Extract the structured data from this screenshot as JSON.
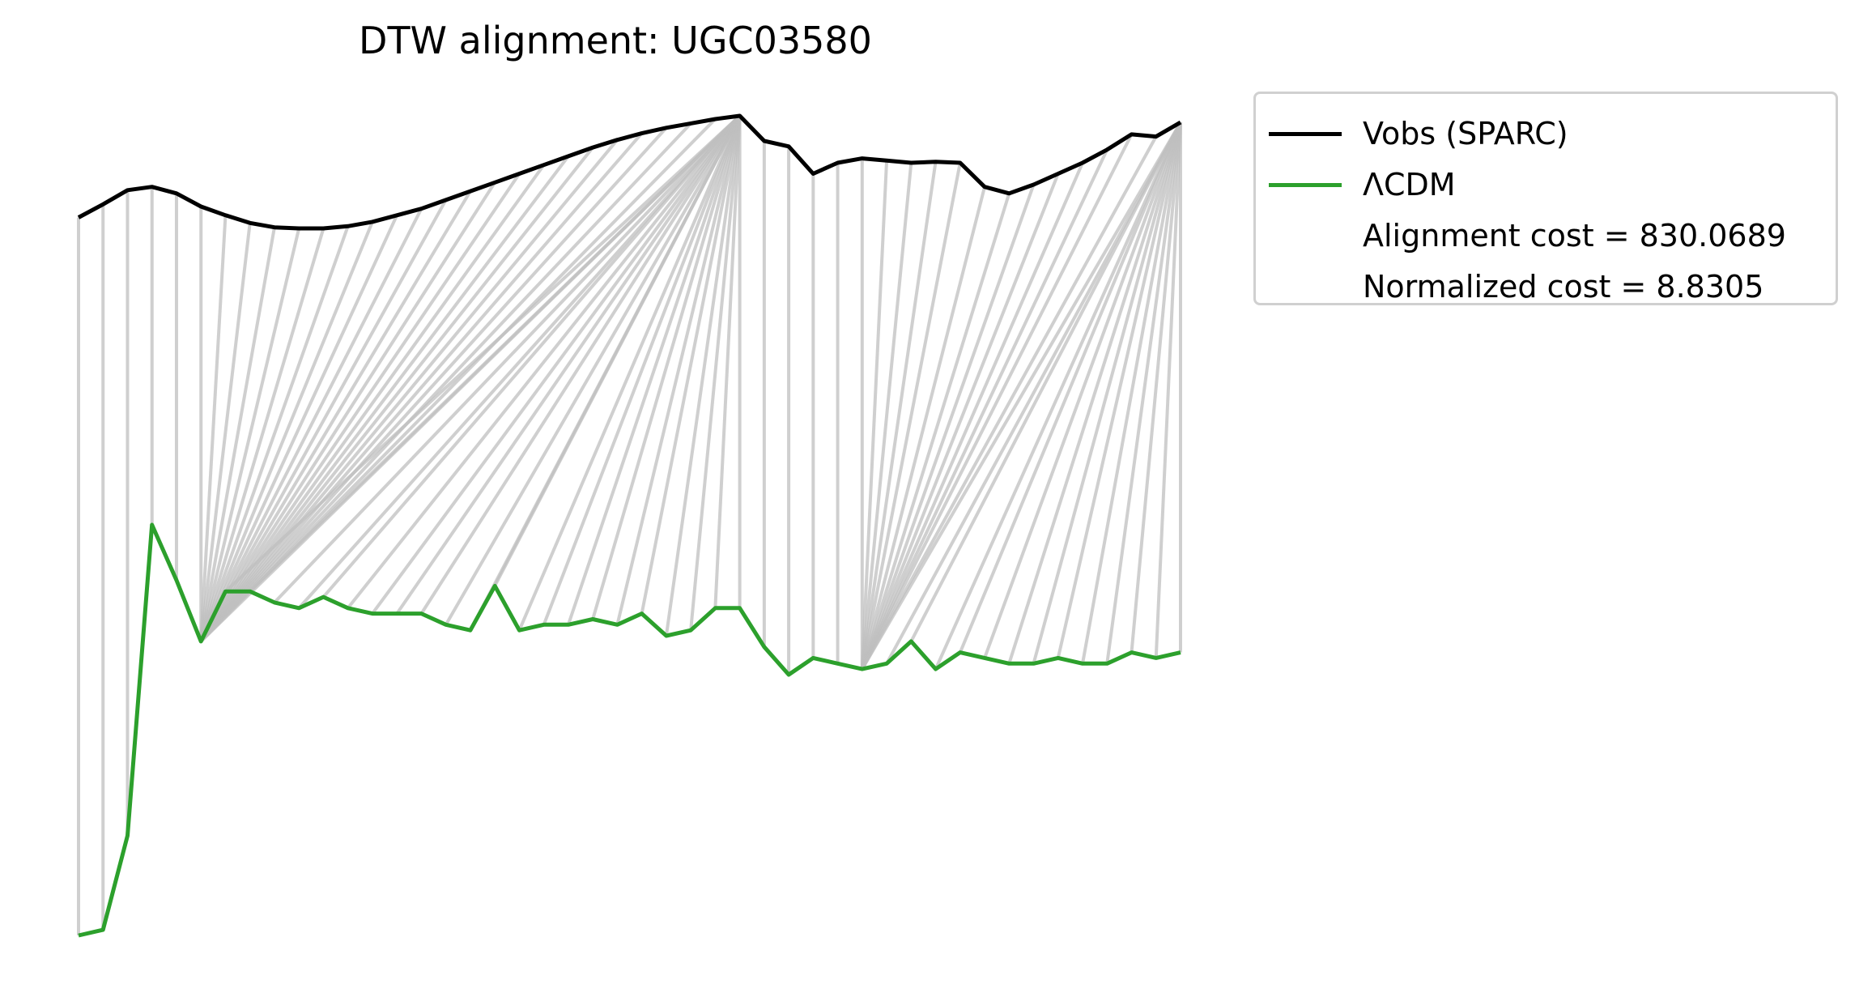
{
  "chart_data": {
    "type": "line",
    "title": "DTW alignment: UGC03580",
    "xlabel": "",
    "ylabel": "",
    "axes_visible": false,
    "grid": false,
    "legend_position": "outside-top-right",
    "series": [
      {
        "name": "Vobs (SPARC)",
        "color": "#000000",
        "values": [
          0.3,
          0.42,
          0.55,
          0.58,
          0.52,
          0.4,
          0.32,
          0.25,
          0.21,
          0.2,
          0.2,
          0.22,
          0.26,
          0.32,
          0.38,
          0.46,
          0.54,
          0.62,
          0.7,
          0.78,
          0.86,
          0.94,
          1.01,
          1.07,
          1.12,
          1.16,
          1.2,
          1.23,
          1.0,
          0.95,
          0.7,
          0.8,
          0.84,
          0.82,
          0.8,
          0.81,
          0.8,
          0.58,
          0.52,
          0.6,
          0.7,
          0.8,
          0.92,
          1.06,
          1.04,
          1.17
        ]
      },
      {
        "name": "ΛCDM",
        "color": "#2ca02c",
        "values": [
          0.52,
          0.53,
          0.7,
          1.26,
          1.16,
          1.05,
          1.14,
          1.14,
          1.12,
          1.11,
          1.13,
          1.11,
          1.1,
          1.1,
          1.1,
          1.08,
          1.07,
          1.15,
          1.07,
          1.08,
          1.08,
          1.09,
          1.08,
          1.1,
          1.06,
          1.07,
          1.11,
          1.11,
          1.04,
          0.99,
          1.02,
          1.01,
          1.0,
          1.01,
          1.05,
          1.0,
          1.03,
          1.02,
          1.01,
          1.01,
          1.02,
          1.01,
          1.01,
          1.03,
          1.02,
          1.03
        ]
      }
    ],
    "legend": {
      "entries": [
        "Vobs (SPARC)",
        "ΛCDM"
      ],
      "annotations": [
        "Alignment cost = 830.0689",
        "Normalized cost = 8.8305"
      ]
    },
    "alignment_path": [
      [
        0,
        0
      ],
      [
        1,
        1
      ],
      [
        2,
        2
      ],
      [
        3,
        3
      ],
      [
        4,
        4
      ],
      [
        5,
        5
      ],
      [
        6,
        5
      ],
      [
        7,
        5
      ],
      [
        8,
        5
      ],
      [
        9,
        5
      ],
      [
        10,
        5
      ],
      [
        11,
        5
      ],
      [
        12,
        5
      ],
      [
        13,
        5
      ],
      [
        14,
        5
      ],
      [
        15,
        5
      ],
      [
        16,
        5
      ],
      [
        17,
        5
      ],
      [
        18,
        5
      ],
      [
        19,
        5
      ],
      [
        20,
        5
      ],
      [
        21,
        5
      ],
      [
        22,
        5
      ],
      [
        23,
        5
      ],
      [
        24,
        5
      ],
      [
        25,
        5
      ],
      [
        26,
        5
      ],
      [
        27,
        5
      ],
      [
        27,
        6
      ],
      [
        27,
        7
      ],
      [
        27,
        8
      ],
      [
        27,
        9
      ],
      [
        27,
        10
      ],
      [
        27,
        11
      ],
      [
        27,
        12
      ],
      [
        27,
        13
      ],
      [
        27,
        14
      ],
      [
        27,
        15
      ],
      [
        27,
        16
      ],
      [
        27,
        17
      ],
      [
        27,
        18
      ],
      [
        27,
        19
      ],
      [
        27,
        20
      ],
      [
        27,
        21
      ],
      [
        27,
        22
      ],
      [
        27,
        23
      ],
      [
        27,
        24
      ],
      [
        27,
        25
      ],
      [
        27,
        26
      ],
      [
        27,
        27
      ],
      [
        28,
        28
      ],
      [
        29,
        29
      ],
      [
        30,
        30
      ],
      [
        31,
        31
      ],
      [
        32,
        32
      ],
      [
        33,
        32
      ],
      [
        34,
        32
      ],
      [
        35,
        32
      ],
      [
        36,
        32
      ],
      [
        37,
        32
      ],
      [
        38,
        32
      ],
      [
        39,
        32
      ],
      [
        40,
        32
      ],
      [
        41,
        32
      ],
      [
        42,
        32
      ],
      [
        43,
        32
      ],
      [
        44,
        32
      ],
      [
        45,
        32
      ],
      [
        45,
        33
      ],
      [
        45,
        34
      ],
      [
        45,
        35
      ],
      [
        45,
        36
      ],
      [
        45,
        37
      ],
      [
        45,
        38
      ],
      [
        45,
        39
      ],
      [
        45,
        40
      ],
      [
        45,
        41
      ],
      [
        45,
        42
      ],
      [
        45,
        43
      ],
      [
        45,
        44
      ],
      [
        45,
        45
      ]
    ],
    "colors": {
      "vobs": "#000000",
      "lcdm": "#2ca02c",
      "alignment_lines": "#bfbfbf"
    }
  }
}
